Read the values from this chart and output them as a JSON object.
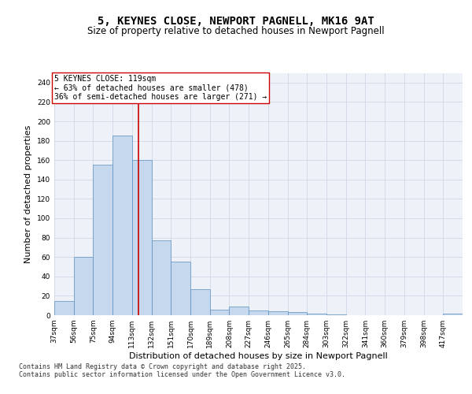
{
  "title": "5, KEYNES CLOSE, NEWPORT PAGNELL, MK16 9AT",
  "subtitle": "Size of property relative to detached houses in Newport Pagnell",
  "xlabel": "Distribution of detached houses by size in Newport Pagnell",
  "ylabel": "Number of detached properties",
  "categories": [
    "37sqm",
    "56sqm",
    "75sqm",
    "94sqm",
    "113sqm",
    "132sqm",
    "151sqm",
    "170sqm",
    "189sqm",
    "208sqm",
    "227sqm",
    "246sqm",
    "265sqm",
    "284sqm",
    "303sqm",
    "322sqm",
    "341sqm",
    "360sqm",
    "379sqm",
    "398sqm",
    "417sqm"
  ],
  "values": [
    15,
    60,
    155,
    185,
    160,
    77,
    55,
    27,
    6,
    9,
    5,
    4,
    3,
    2,
    1,
    0,
    0,
    0,
    0,
    0,
    2
  ],
  "bar_color": "#c5d8ed",
  "bar_edge_color": "#5a8fc0",
  "vline_x": 119,
  "vline_color": "#cc0000",
  "annotation_text": "5 KEYNES CLOSE: 119sqm\n← 63% of detached houses are smaller (478)\n36% of semi-detached houses are larger (271) →",
  "annotation_box_color": "#ffffff",
  "annotation_box_edge_color": "#cc0000",
  "ylim": [
    0,
    250
  ],
  "yticks": [
    0,
    20,
    40,
    60,
    80,
    100,
    120,
    140,
    160,
    180,
    200,
    220,
    240
  ],
  "grid_color": "#d0d8e8",
  "background_color": "#eef2f8",
  "footer_text": "Contains HM Land Registry data © Crown copyright and database right 2025.\nContains public sector information licensed under the Open Government Licence v3.0.",
  "title_fontsize": 10,
  "subtitle_fontsize": 8.5,
  "axis_label_fontsize": 8,
  "tick_fontsize": 6.5,
  "annotation_fontsize": 7,
  "footer_fontsize": 6
}
